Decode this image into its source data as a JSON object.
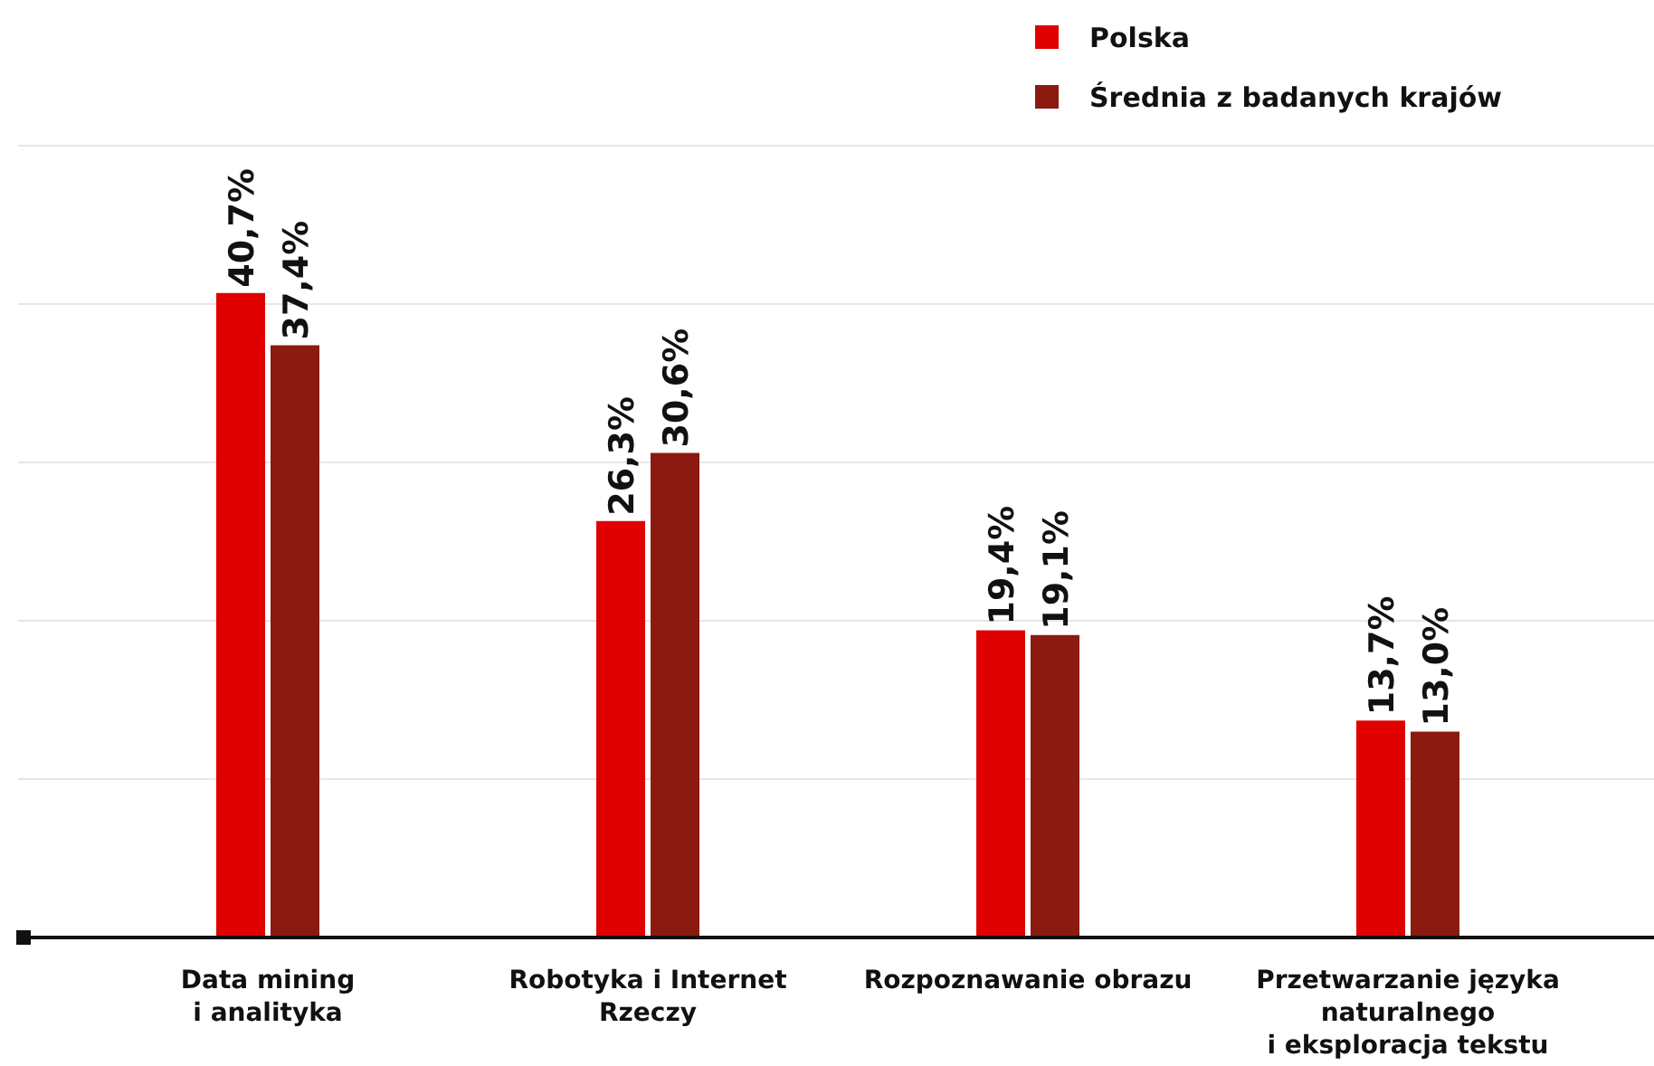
{
  "chart_data": {
    "type": "bar",
    "categories": [
      "Data mining i analityka",
      "Robotyka i Internet Rzeczy",
      "Rozpoznawanie obrazu",
      "Przetwarzanie języka naturalnego i eksploracja tekstu"
    ],
    "series": [
      {
        "name": "Polska",
        "color": "#e00000",
        "values": [
          40.7,
          26.3,
          19.4,
          13.7
        ],
        "value_labels": [
          "40,7%",
          "26,3%",
          "19,4%",
          "13,7%"
        ]
      },
      {
        "name": "Średnia z badanych krajów",
        "color": "#8b1a10",
        "values": [
          37.4,
          30.6,
          19.1,
          13.0
        ],
        "value_labels": [
          "37,4%",
          "30,6%",
          "19,1%",
          "13,0%"
        ]
      }
    ],
    "grid": "y",
    "legend": "top right",
    "tick_labels": "x"
  }
}
